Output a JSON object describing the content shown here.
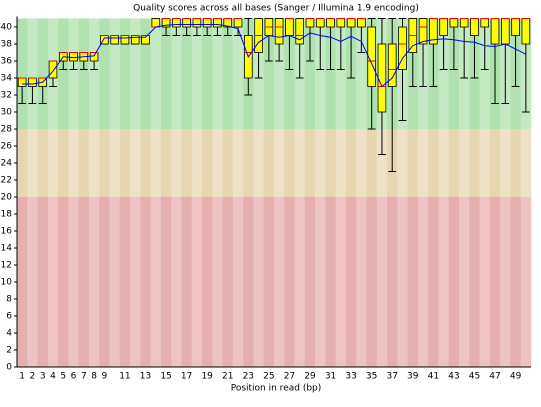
{
  "chart_data": {
    "type": "box",
    "title": "Quality scores across all bases (Sanger / Illumina 1.9 encoding)",
    "x_label": "Position in read (bp)",
    "categories": [
      "1",
      "2",
      "3",
      "4",
      "5",
      "6",
      "7",
      "8",
      "9",
      null,
      "11",
      null,
      "13",
      null,
      "15",
      null,
      "17",
      null,
      "19",
      null,
      "21",
      null,
      "23",
      null,
      "25",
      null,
      "27",
      null,
      "29",
      null,
      "31",
      null,
      "33",
      null,
      "35",
      null,
      "37",
      null,
      "39",
      null,
      "41",
      null,
      "43",
      null,
      "45",
      null,
      "47",
      null,
      "49",
      null
    ],
    "lower": [
      31,
      31,
      31,
      33,
      35,
      35,
      35,
      35,
      38,
      38,
      38,
      38,
      38,
      40,
      39,
      39,
      39,
      39,
      39,
      39,
      39,
      39,
      32,
      34,
      36,
      36,
      35,
      34,
      36,
      35,
      35,
      35,
      34,
      37,
      28,
      25,
      23,
      29,
      33,
      33,
      33,
      35,
      35,
      34,
      34,
      35,
      31,
      31,
      33,
      30
    ],
    "q1": [
      33,
      33,
      33,
      34,
      36,
      36,
      36,
      36,
      38,
      38,
      38,
      38,
      38,
      40,
      40,
      40,
      40,
      40,
      40,
      40,
      40,
      40,
      34,
      37,
      39,
      38,
      39,
      38,
      40,
      40,
      40,
      40,
      40,
      40,
      33,
      30,
      33,
      35,
      37,
      38,
      38,
      39,
      40,
      40,
      39,
      40,
      38,
      38,
      39,
      38
    ],
    "median": [
      34,
      34,
      34,
      36,
      37,
      37,
      37,
      37,
      39,
      39,
      39,
      39,
      39,
      40,
      41,
      41,
      41,
      41,
      41,
      41,
      41,
      41,
      37,
      39,
      40,
      40,
      41,
      39,
      41,
      41,
      41,
      41,
      41,
      41,
      36,
      33,
      35,
      38,
      39,
      40,
      41,
      41,
      41,
      41,
      41,
      41,
      41,
      41,
      41,
      41
    ],
    "q3": [
      34,
      34,
      34,
      36,
      37,
      37,
      37,
      37,
      39,
      39,
      39,
      39,
      39,
      41,
      41,
      41,
      41,
      41,
      41,
      41,
      41,
      41,
      39,
      41,
      41,
      41,
      41,
      41,
      41,
      41,
      41,
      41,
      41,
      41,
      40,
      38,
      38,
      40,
      41,
      41,
      41,
      41,
      41,
      41,
      41,
      41,
      41,
      41,
      41,
      41
    ],
    "upper": [
      34,
      34,
      34,
      36,
      37,
      37,
      37,
      37,
      39,
      39,
      39,
      39,
      39,
      41,
      41,
      41,
      41,
      41,
      41,
      41,
      41,
      41,
      41,
      41,
      41,
      41,
      41,
      41,
      41,
      41,
      41,
      41,
      41,
      41,
      41,
      41,
      41,
      41,
      41,
      41,
      41,
      41,
      41,
      41,
      41,
      41,
      41,
      41,
      41,
      41
    ],
    "mean": [
      33.3,
      33.3,
      33.5,
      34.8,
      36.5,
      36.4,
      36.5,
      36.6,
      38.7,
      38.7,
      38.7,
      38.8,
      38.8,
      40,
      40.2,
      40.3,
      40.3,
      40.3,
      40.3,
      40.3,
      40.1,
      39.8,
      36.5,
      38.2,
      39,
      38.8,
      39,
      38.5,
      39.3,
      39,
      38.8,
      38.3,
      38.9,
      38.3,
      35.7,
      33,
      34,
      36.3,
      37.8,
      38.3,
      38.5,
      38.6,
      38.5,
      38.3,
      38.2,
      37.8,
      37.7,
      38,
      37.4,
      36.8
    ],
    "box_color": "#ffff00",
    "median_color": "#ff0000",
    "mean_color": "#0000ff",
    "bands": [
      {
        "from": 28,
        "to": 41,
        "colors": [
          "#afe2af",
          "#c3eac3"
        ]
      },
      {
        "from": 20,
        "to": 28,
        "colors": [
          "#e6d7af",
          "#ede2c5"
        ]
      },
      {
        "from": 0,
        "to": 20,
        "colors": [
          "#e6afaf",
          "#edc3c3"
        ]
      }
    ],
    "ylim": [
      0,
      41
    ],
    "yticks": [
      0,
      2,
      4,
      6,
      8,
      10,
      12,
      14,
      16,
      18,
      20,
      22,
      24,
      26,
      28,
      30,
      32,
      34,
      36,
      38,
      40
    ]
  }
}
